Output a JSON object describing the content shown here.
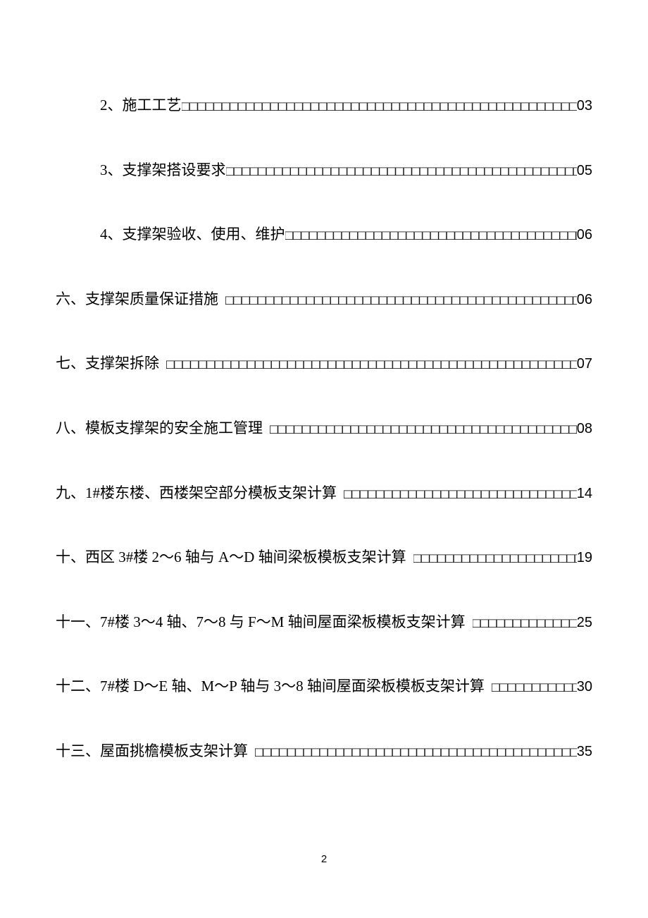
{
  "toc": {
    "entries": [
      {
        "indented": true,
        "title": "2、施工工艺",
        "page": "03",
        "gap": false
      },
      {
        "indented": true,
        "title": "3、支撑架搭设要求",
        "page": "05",
        "gap": false
      },
      {
        "indented": true,
        "title": "4、支撑架验收、使用、维护",
        "page": "06",
        "gap": false
      },
      {
        "indented": false,
        "title": "六、支撑架质量保证措施",
        "page": "06",
        "gap": true
      },
      {
        "indented": false,
        "title": "七、支撑架拆除",
        "page": "07",
        "gap": true
      },
      {
        "indented": false,
        "title": "八、模板支撑架的安全施工管理",
        "page": "08",
        "gap": true
      },
      {
        "indented": false,
        "title": "九、1#楼东楼、西楼架空部分模板支架计算",
        "page": "14",
        "gap": true
      },
      {
        "indented": false,
        "title": "十、西区 3#楼 2～6 轴与 A～D 轴间梁板模板支架计算",
        "page": "19",
        "gap": true
      },
      {
        "indented": false,
        "title": "十一、7#楼 3～4 轴、7～8 与 F～M 轴间屋面梁板模板支架计算",
        "page": "25",
        "gap": true
      },
      {
        "indented": false,
        "title": "十二、7#楼 D～E 轴、M～P 轴与 3～8 轴间屋面梁板模板支架计算",
        "page": "30",
        "gap": true
      },
      {
        "indented": false,
        "title": "十三、屋面挑檐模板支架计算",
        "page": "35",
        "gap": true
      }
    ]
  },
  "leader_char": "□",
  "page_number": "2",
  "colors": {
    "background": "#ffffff",
    "text": "#000000"
  },
  "typography": {
    "body_fontsize": 21,
    "page_number_fontsize": 15
  }
}
